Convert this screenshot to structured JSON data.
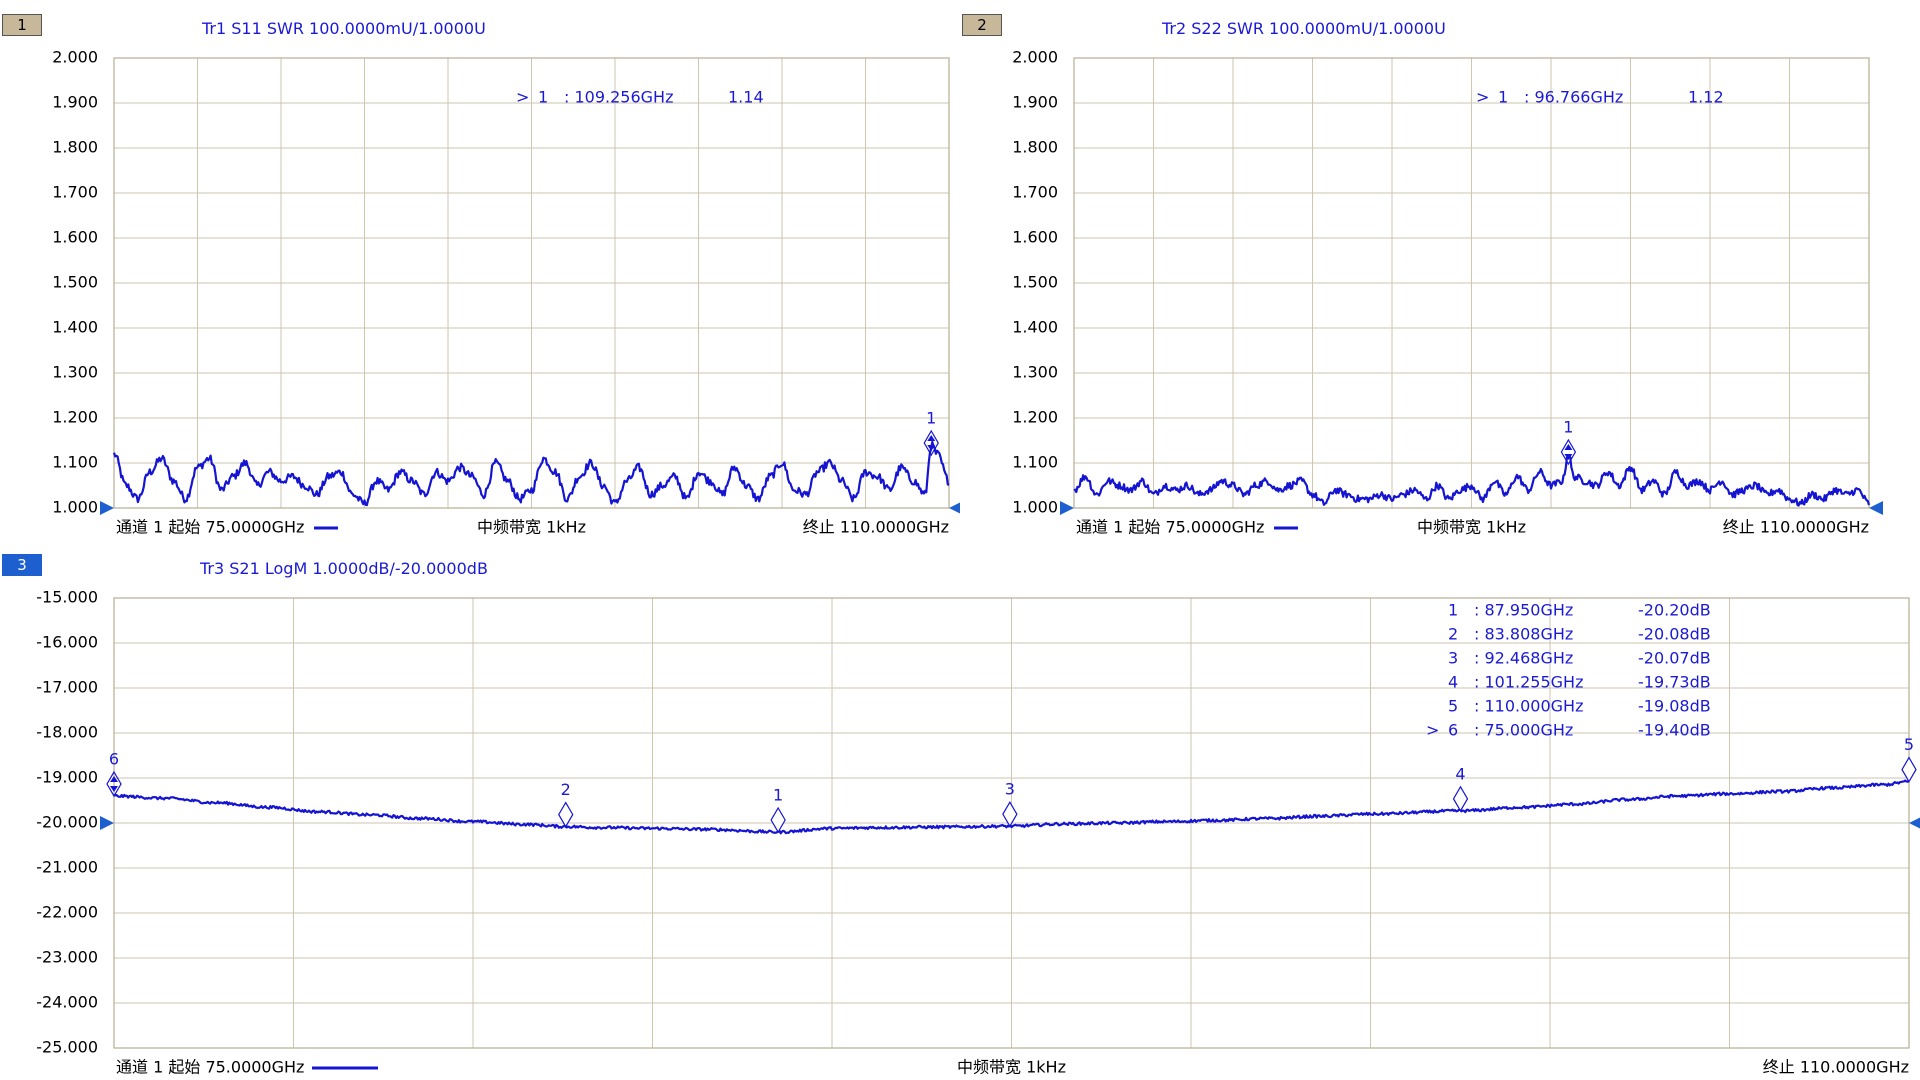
{
  "colors": {
    "trace": "#1414d2",
    "grid": "#cfc6b0",
    "frame": "#b8ad92",
    "text": "#000000",
    "marker_text": "#1a1ad6",
    "badge_tan": "#c8b89a",
    "badge_blue": "#1e5fd0"
  },
  "footer": {
    "start": "通道 1 起始 75.0000GHz",
    "ifbw": "中频带宽 1kHz",
    "stop": "终止 110.0000GHz"
  },
  "chart_data": [
    {
      "type": "line",
      "id": "tr1",
      "channel_badge": "1",
      "title": "Tr1 S11 SWR 100.0000mU/1.0000U",
      "xlim": [
        75,
        110
      ],
      "ylim": [
        1.0,
        2.0
      ],
      "y_ticks": [
        "2.000",
        "1.900",
        "1.800",
        "1.700",
        "1.600",
        "1.500",
        "1.400",
        "1.300",
        "1.200",
        "1.100",
        "1.000"
      ],
      "x_divisions": 10,
      "series": [
        {
          "x": [
            75.0,
            75.5,
            76.0,
            76.5,
            77.0,
            77.5,
            78.0,
            78.5,
            79.0,
            79.5,
            80.0,
            80.5,
            81.0,
            81.5,
            82.0,
            82.5,
            83.0,
            83.5,
            84.0,
            84.5,
            85.0,
            85.5,
            86.0,
            86.5,
            87.0,
            87.5,
            88.0,
            88.5,
            89.0,
            89.5,
            90.0,
            90.5,
            91.0,
            91.5,
            92.0,
            92.5,
            93.0,
            93.5,
            94.0,
            94.5,
            95.0,
            95.5,
            96.0,
            96.5,
            97.0,
            97.5,
            98.0,
            98.5,
            99.0,
            99.5,
            100.0,
            100.5,
            101.0,
            101.5,
            102.0,
            102.5,
            103.0,
            103.5,
            104.0,
            104.5,
            105.0,
            105.5,
            106.0,
            106.5,
            107.0,
            107.5,
            108.0,
            108.5,
            109.0,
            109.256,
            109.5,
            110.0
          ],
          "y": [
            1.12,
            1.05,
            1.02,
            1.08,
            1.11,
            1.06,
            1.02,
            1.09,
            1.11,
            1.04,
            1.07,
            1.1,
            1.05,
            1.08,
            1.06,
            1.07,
            1.05,
            1.03,
            1.07,
            1.08,
            1.03,
            1.01,
            1.06,
            1.04,
            1.08,
            1.06,
            1.03,
            1.08,
            1.06,
            1.09,
            1.07,
            1.03,
            1.1,
            1.06,
            1.02,
            1.04,
            1.11,
            1.08,
            1.02,
            1.07,
            1.1,
            1.05,
            1.01,
            1.06,
            1.09,
            1.03,
            1.05,
            1.07,
            1.02,
            1.08,
            1.06,
            1.03,
            1.09,
            1.05,
            1.02,
            1.07,
            1.1,
            1.04,
            1.03,
            1.08,
            1.1,
            1.06,
            1.02,
            1.08,
            1.07,
            1.04,
            1.09,
            1.06,
            1.03,
            1.14,
            1.12,
            1.06
          ]
        }
      ],
      "markers": [
        {
          "label": "1",
          "x": 109.256,
          "y": 1.14
        }
      ],
      "marker_table": [
        {
          "active": ">",
          "num": "1",
          "freq": ": 109.256GHz",
          "val": "1.14"
        }
      ]
    },
    {
      "type": "line",
      "id": "tr2",
      "channel_badge": "2",
      "title": "Tr2 S22 SWR 100.0000mU/1.0000U",
      "xlim": [
        75,
        110
      ],
      "ylim": [
        1.0,
        2.0
      ],
      "y_ticks": [
        "2.000",
        "1.900",
        "1.800",
        "1.700",
        "1.600",
        "1.500",
        "1.400",
        "1.300",
        "1.200",
        "1.100",
        "1.000"
      ],
      "x_divisions": 10,
      "series": [
        {
          "x": [
            75.0,
            75.5,
            76.0,
            76.5,
            77.0,
            77.5,
            78.0,
            78.5,
            79.0,
            79.5,
            80.0,
            80.5,
            81.0,
            81.5,
            82.0,
            82.5,
            83.0,
            83.5,
            84.0,
            84.5,
            85.0,
            85.5,
            86.0,
            86.5,
            87.0,
            87.5,
            88.0,
            88.5,
            89.0,
            89.5,
            90.0,
            90.5,
            91.0,
            91.5,
            92.0,
            92.5,
            93.0,
            93.5,
            94.0,
            94.5,
            95.0,
            95.5,
            96.0,
            96.5,
            96.766,
            97.0,
            97.5,
            98.0,
            98.5,
            99.0,
            99.5,
            100.0,
            100.5,
            101.0,
            101.5,
            102.0,
            102.5,
            103.0,
            103.5,
            104.0,
            104.5,
            105.0,
            105.5,
            106.0,
            106.5,
            107.0,
            107.5,
            108.0,
            108.5,
            109.0,
            109.5,
            110.0
          ],
          "y": [
            1.04,
            1.07,
            1.03,
            1.06,
            1.05,
            1.04,
            1.06,
            1.03,
            1.05,
            1.04,
            1.05,
            1.03,
            1.04,
            1.06,
            1.05,
            1.03,
            1.05,
            1.06,
            1.04,
            1.05,
            1.06,
            1.03,
            1.01,
            1.04,
            1.03,
            1.02,
            1.02,
            1.03,
            1.02,
            1.03,
            1.04,
            1.02,
            1.05,
            1.02,
            1.04,
            1.05,
            1.02,
            1.06,
            1.03,
            1.07,
            1.04,
            1.08,
            1.05,
            1.06,
            1.12,
            1.07,
            1.06,
            1.05,
            1.08,
            1.05,
            1.09,
            1.04,
            1.06,
            1.03,
            1.08,
            1.05,
            1.06,
            1.04,
            1.06,
            1.03,
            1.04,
            1.05,
            1.03,
            1.04,
            1.02,
            1.01,
            1.03,
            1.02,
            1.04,
            1.03,
            1.04,
            1.01
          ]
        }
      ],
      "markers": [
        {
          "label": "1",
          "x": 96.766,
          "y": 1.12
        }
      ],
      "marker_table": [
        {
          "active": ">",
          "num": "1",
          "freq": ": 96.766GHz",
          "val": "1.12"
        }
      ]
    },
    {
      "type": "line",
      "id": "tr3",
      "channel_badge": "3",
      "title": "Tr3 S21 LogM 1.0000dB/-20.0000dB",
      "xlim": [
        75,
        110
      ],
      "ylim": [
        -25.0,
        -15.0
      ],
      "y_ticks": [
        "-15.000",
        "-16.000",
        "-17.000",
        "-18.000",
        "-19.000",
        "-20.000",
        "-21.000",
        "-22.000",
        "-23.000",
        "-24.000",
        "-25.000"
      ],
      "x_divisions": 10,
      "series": [
        {
          "x": [
            75.0,
            76.0,
            77.0,
            78.0,
            79.0,
            80.0,
            81.0,
            82.0,
            83.0,
            83.808,
            84.5,
            85.5,
            86.5,
            87.95,
            89.0,
            90.0,
            91.0,
            92.468,
            93.5,
            94.5,
            95.5,
            96.5,
            97.5,
            98.5,
            99.5,
            101.255,
            102.5,
            103.5,
            104.5,
            105.5,
            106.5,
            107.5,
            108.5,
            109.5,
            110.0
          ],
          "y": [
            -19.4,
            -19.45,
            -19.55,
            -19.65,
            -19.75,
            -19.82,
            -19.9,
            -19.97,
            -20.03,
            -20.08,
            -20.1,
            -20.12,
            -20.14,
            -20.2,
            -20.12,
            -20.1,
            -20.09,
            -20.07,
            -20.02,
            -20.0,
            -19.97,
            -19.94,
            -19.9,
            -19.85,
            -19.8,
            -19.73,
            -19.65,
            -19.58,
            -19.48,
            -19.4,
            -19.35,
            -19.3,
            -19.22,
            -19.15,
            -19.08
          ]
        }
      ],
      "markers": [
        {
          "label": "1",
          "x": 87.95,
          "y": -20.2
        },
        {
          "label": "2",
          "x": 83.808,
          "y": -20.08
        },
        {
          "label": "3",
          "x": 92.468,
          "y": -20.07
        },
        {
          "label": "4",
          "x": 101.255,
          "y": -19.73
        },
        {
          "label": "5",
          "x": 110.0,
          "y": -19.08
        },
        {
          "label": "6",
          "x": 75.0,
          "y": -19.4
        }
      ],
      "marker_table": [
        {
          "active": "",
          "num": "1",
          "freq": ": 87.950GHz",
          "val": "-20.20dB"
        },
        {
          "active": "",
          "num": "2",
          "freq": ": 83.808GHz",
          "val": "-20.08dB"
        },
        {
          "active": "",
          "num": "3",
          "freq": ": 92.468GHz",
          "val": "-20.07dB"
        },
        {
          "active": "",
          "num": "4",
          "freq": ": 101.255GHz",
          "val": "-19.73dB"
        },
        {
          "active": "",
          "num": "5",
          "freq": ": 110.000GHz",
          "val": "-19.08dB"
        },
        {
          "active": ">",
          "num": "6",
          "freq": ": 75.000GHz",
          "val": "-19.40dB"
        }
      ]
    }
  ]
}
